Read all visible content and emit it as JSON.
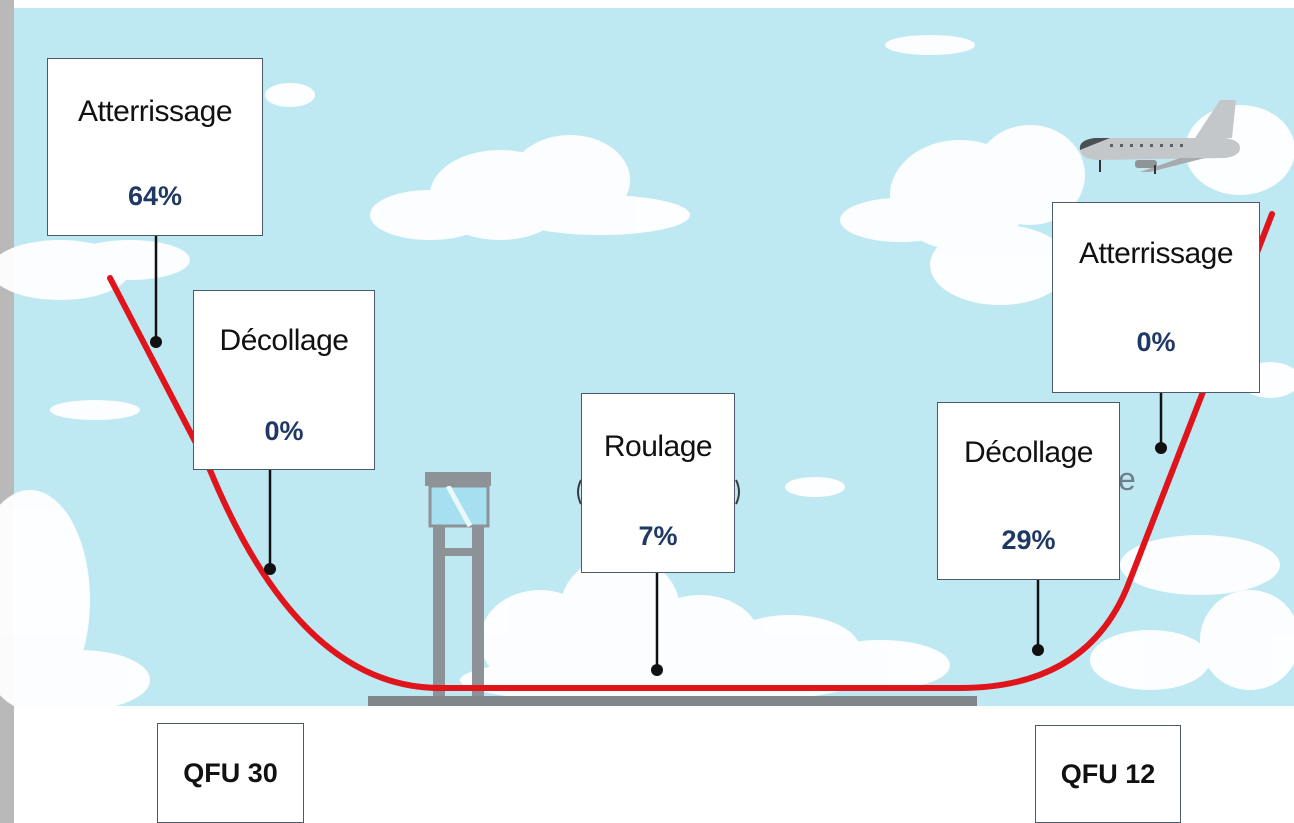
{
  "phases": {
    "landing_qfu30": {
      "label": "Atterrissage",
      "value": "64%"
    },
    "takeoff_qfu30": {
      "label": "Décollage",
      "value": "0%"
    },
    "taxi": {
      "label": "Roulage",
      "value": "7%"
    },
    "takeoff_qfu12": {
      "label": "Décollage",
      "value": "29%"
    },
    "landing_qfu12": {
      "label": "Atterrissage",
      "value": "0%"
    }
  },
  "runways": {
    "left": "QFU 30",
    "right": "QFU 12"
  },
  "colors": {
    "sky": "#bfe9f2",
    "path": "#e0141b",
    "value_text": "#1f3864",
    "runway": "#7f8589"
  }
}
